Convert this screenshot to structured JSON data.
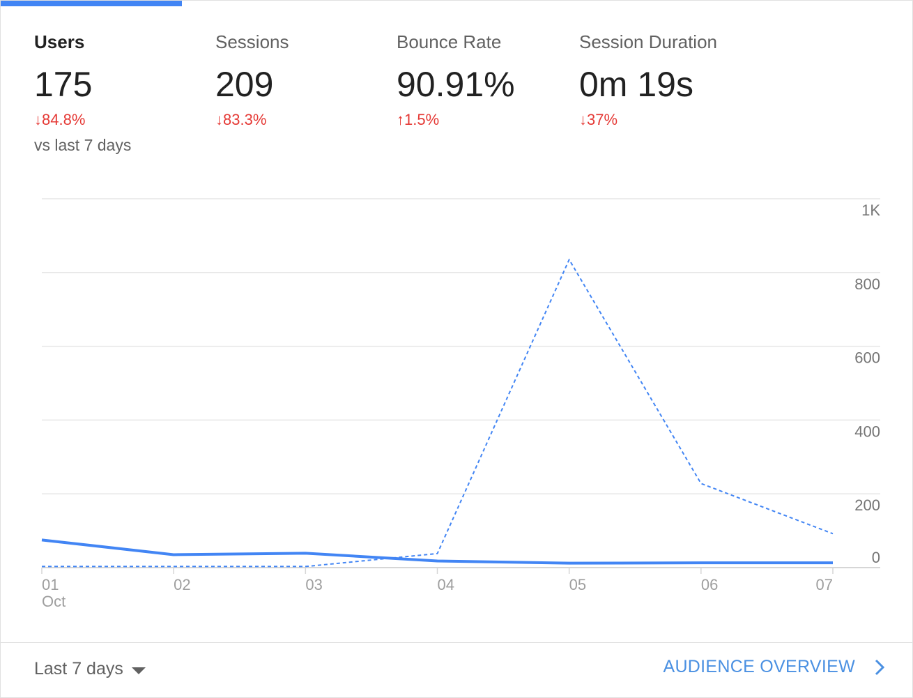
{
  "metrics": [
    {
      "label": "Users",
      "value": "175",
      "arrow": "↓",
      "change": "84.8%",
      "comparison": "vs last 7 days"
    },
    {
      "label": "Sessions",
      "value": "209",
      "arrow": "↓",
      "change": "83.3%"
    },
    {
      "label": "Bounce Rate",
      "value": "90.91%",
      "arrow": "↑",
      "change": "1.5%"
    },
    {
      "label": "Session Duration",
      "value": "0m 19s",
      "arrow": "↓",
      "change": "37%"
    }
  ],
  "colors": {
    "accent": "#4285f4",
    "negative_change": "#e53935",
    "link": "#4a90e2"
  },
  "footer": {
    "date_range": "Last 7 days",
    "report_link": "AUDIENCE OVERVIEW"
  },
  "icons": {
    "date_range_caret": "caret-down-icon",
    "report_link_arrow": "chevron-right-icon"
  },
  "chart_data": {
    "type": "line",
    "x": [
      "01",
      "02",
      "03",
      "04",
      "05",
      "06",
      "07"
    ],
    "x_secondary_label": "Oct",
    "series": [
      {
        "values": [
          75,
          35,
          39,
          18,
          12,
          13,
          13
        ],
        "style": "solid",
        "color": "#4285f4"
      },
      {
        "values": [
          3,
          3,
          3,
          38,
          835,
          228,
          92
        ],
        "style": "dashed",
        "color": "#4285f4"
      }
    ],
    "yticks": [
      0,
      200,
      400,
      600,
      800,
      1000
    ],
    "ytick_labels": [
      "0",
      "200",
      "400",
      "600",
      "800",
      "1K"
    ],
    "ylim": [
      0,
      1000
    ],
    "y_axis_position": "right",
    "grid": true,
    "legend": "none"
  }
}
